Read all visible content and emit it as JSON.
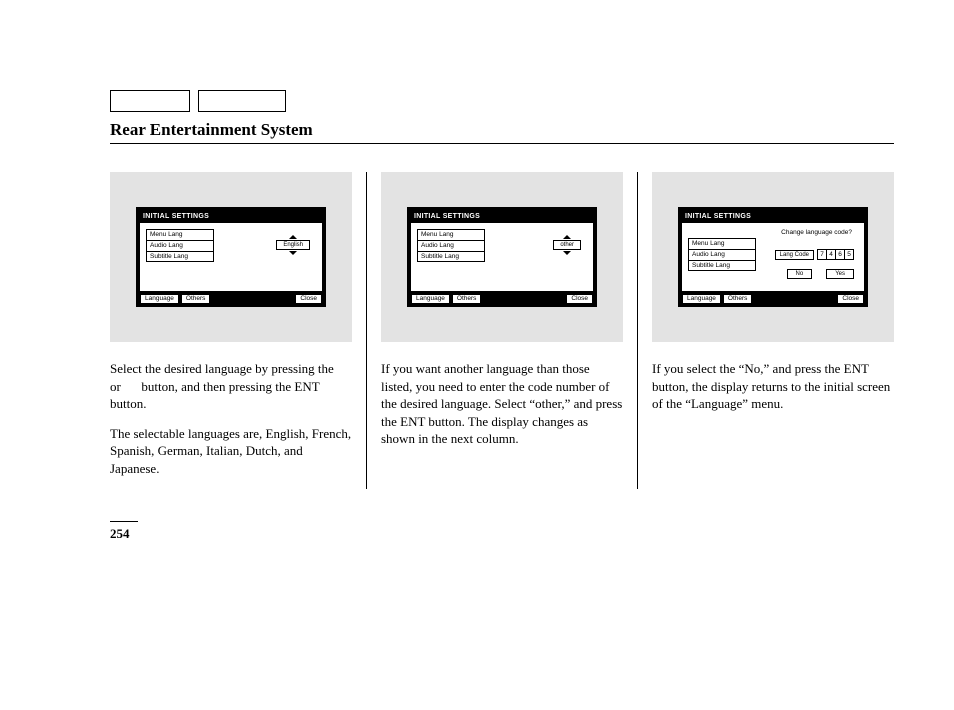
{
  "page_title": "Rear Entertainment System",
  "page_number": "254",
  "screen_common": {
    "title": "INITIAL SETTINGS",
    "menu_items": [
      "Menu Lang",
      "Audio Lang",
      "Subtitle Lang"
    ],
    "footer_language": "Language",
    "footer_others": "Others",
    "footer_close": "Close"
  },
  "screen1": {
    "selected_lang": "English"
  },
  "screen2": {
    "selected_lang": "other"
  },
  "screen3": {
    "prompt": "Change language code?",
    "code_label": "Lang Code",
    "code_digits": [
      "7",
      "4",
      "6",
      "5"
    ],
    "no_label": "No",
    "yes_label": "Yes"
  },
  "col1": {
    "p1_a": "Select the desired language by pressing the",
    "p1_b": "or",
    "p1_c": "button, and then pressing the ENT button.",
    "p2": "The selectable languages are, English, French, Spanish, German, Italian, Dutch, and Japanese."
  },
  "col2": {
    "p1": "If you want another language than those listed, you need to enter the code number of the desired language. Select “other,” and press the ENT button. The display changes as shown in the next column."
  },
  "col3": {
    "p1": "If you select the “No,” and press the ENT button, the display returns to the initial screen of the “Language” menu."
  }
}
